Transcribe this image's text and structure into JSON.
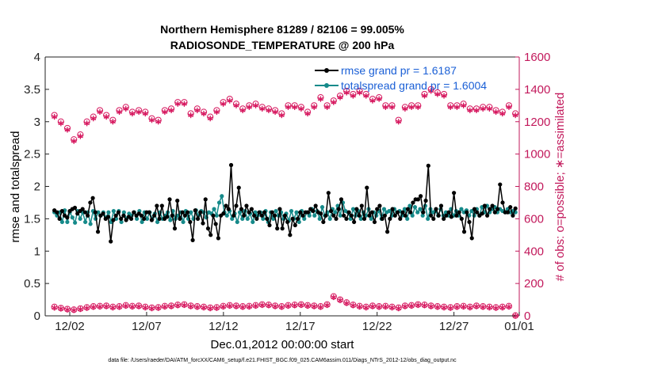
{
  "chart_data": {
    "type": "line",
    "title": "Northern Hemisphere 81289 / 82106 = 99.005%",
    "subtitle": "RADIOSONDE_TEMPERATURE @ 200 hPa",
    "xlabel": "Dec.01,2012 00:00:00 start",
    "ylabel_left": "rmse and totalspread",
    "ylabel_right": "# of obs: o=possible; ∗=assimilated",
    "footer": "data file: /Users/raeder/DAI/ATM_forcXX/CAM6_setup/f.e21.FHIST_BGC.f09_025.CAM6assim.011/Diags_NTrS_2012-12/obs_diag_output.nc",
    "x_range": [
      0.4,
      31.25
    ],
    "ylim_left": [
      0,
      4
    ],
    "ylim_right": [
      0,
      1600
    ],
    "yticks_left": [
      "0",
      "0.5",
      "1",
      "1.5",
      "2",
      "2.5",
      "3",
      "3.5",
      "4"
    ],
    "yticks_right": [
      "0",
      "200",
      "400",
      "600",
      "800",
      "1000",
      "1200",
      "1400",
      "1600"
    ],
    "xticks": [
      {
        "label": "12/02",
        "value": 2
      },
      {
        "label": "12/07",
        "value": 7
      },
      {
        "label": "12/12",
        "value": 12
      },
      {
        "label": "12/17",
        "value": 17
      },
      {
        "label": "12/22",
        "value": 22
      },
      {
        "label": "12/27",
        "value": 27
      },
      {
        "label": "01/01",
        "value": 32
      }
    ],
    "legend": [
      {
        "label": "rmse grand pr = 1.6187",
        "color": "#000000"
      },
      {
        "label": "totalspread grand pr = 1.6004",
        "color": "#168a8a"
      }
    ],
    "colors": {
      "rmse": "#000000",
      "spread": "#168a8a",
      "obs": "#d6185f",
      "axis": "#222222"
    },
    "series": [
      {
        "name": "rmse",
        "color": "#000000",
        "values": [
          1.63,
          1.6,
          1.5,
          1.62,
          1.55,
          1.52,
          1.62,
          1.65,
          1.67,
          1.58,
          1.62,
          1.65,
          1.6,
          1.55,
          1.75,
          1.82,
          1.6,
          1.3,
          1.55,
          1.58,
          1.5,
          1.53,
          1.15,
          1.48,
          1.55,
          1.6,
          1.5,
          1.55,
          1.48,
          1.53,
          1.5,
          1.6,
          1.55,
          1.58,
          1.55,
          1.5,
          1.6,
          1.6,
          1.48,
          1.55,
          1.7,
          1.5,
          1.7,
          1.5,
          1.53,
          1.8,
          1.55,
          1.35,
          1.78,
          1.5,
          1.6,
          1.55,
          1.6,
          1.45,
          1.17,
          1.63,
          1.5,
          1.6,
          1.43,
          1.8,
          1.35,
          1.25,
          1.55,
          1.42,
          1.2,
          1.55,
          1.58,
          1.7,
          1.65,
          2.33,
          1.55,
          1.7,
          1.98,
          1.65,
          1.55,
          1.7,
          1.6,
          1.65,
          1.55,
          1.5,
          1.6,
          1.55,
          1.6,
          1.5,
          1.4,
          1.6,
          1.55,
          1.35,
          1.65,
          1.35,
          1.55,
          1.45,
          1.25,
          1.5,
          1.4,
          1.5,
          1.6,
          1.55,
          1.6,
          1.6,
          1.65,
          1.62,
          1.7,
          1.6,
          1.58,
          1.45,
          1.55,
          1.9,
          1.62,
          1.55,
          1.5,
          1.65,
          1.8,
          1.55,
          1.5,
          1.6,
          1.55,
          1.45,
          1.65,
          1.55,
          1.7,
          1.5,
          1.98,
          1.55,
          1.6,
          1.45,
          1.65,
          1.7,
          1.5,
          1.55,
          1.3,
          1.5,
          1.65,
          1.55,
          1.6,
          1.5,
          1.6,
          1.55,
          1.65,
          1.6,
          1.75,
          1.8,
          1.8,
          1.85,
          1.6,
          1.78,
          2.32,
          1.55,
          1.5,
          1.65,
          1.55,
          1.7,
          1.5,
          1.55,
          1.6,
          1.53,
          1.9,
          1.55,
          1.6,
          1.5,
          1.3,
          1.6,
          1.45,
          1.2,
          1.65,
          1.6,
          1.55,
          1.58,
          1.7,
          1.55,
          1.65,
          1.7,
          1.6,
          1.65,
          2.03,
          1.75,
          1.6,
          1.6,
          1.68,
          1.55,
          1.66
        ]
      },
      {
        "name": "totalspread",
        "color": "#168a8a",
        "values": [
          1.6,
          1.55,
          1.6,
          1.45,
          1.63,
          1.45,
          1.6,
          1.52,
          1.44,
          1.62,
          1.5,
          1.6,
          1.45,
          1.6,
          1.42,
          1.62,
          1.5,
          1.6,
          1.55,
          1.6,
          1.52,
          1.6,
          1.45,
          1.62,
          1.5,
          1.62,
          1.45,
          1.6,
          1.5,
          1.58,
          1.55,
          1.6,
          1.5,
          1.62,
          1.45,
          1.6,
          1.5,
          1.6,
          1.5,
          1.58,
          1.45,
          1.6,
          1.5,
          1.55,
          1.6,
          1.48,
          1.62,
          1.5,
          1.55,
          1.6,
          1.45,
          1.62,
          1.5,
          1.6,
          1.5,
          1.63,
          1.55,
          1.62,
          1.6,
          1.52,
          1.6,
          1.58,
          1.65,
          1.55,
          1.75,
          1.85,
          1.6,
          1.55,
          1.62,
          1.5,
          1.58,
          1.45,
          1.6,
          1.5,
          1.62,
          1.5,
          1.58,
          1.45,
          1.6,
          1.55,
          1.6,
          1.5,
          1.62,
          1.45,
          1.6,
          1.5,
          1.62,
          1.55,
          1.6,
          1.5,
          1.58,
          1.47,
          1.62,
          1.5,
          1.6,
          1.45,
          1.62,
          1.5,
          1.6,
          1.55,
          1.65,
          1.55,
          1.62,
          1.5,
          1.68,
          1.55,
          1.6,
          1.5,
          1.65,
          1.6,
          1.7,
          1.55,
          1.75,
          1.62,
          1.6,
          1.5,
          1.65,
          1.55,
          1.62,
          1.5,
          1.6,
          1.55,
          1.65,
          1.5,
          1.6,
          1.55,
          1.62,
          1.5,
          1.65,
          1.6,
          1.62,
          1.55,
          1.65,
          1.6,
          1.62,
          1.55,
          1.65,
          1.5,
          1.7,
          1.55,
          1.68,
          1.6,
          1.65,
          1.55,
          1.7,
          1.5,
          1.65,
          1.6,
          1.62,
          1.55,
          1.65,
          1.55,
          1.6,
          1.55,
          1.65,
          1.55,
          1.62,
          1.55,
          1.65,
          1.6,
          1.63,
          1.55,
          1.62,
          1.55,
          1.65,
          1.55,
          1.68,
          1.6,
          1.7,
          1.6,
          1.65,
          1.68,
          1.6,
          1.65,
          1.62,
          1.6,
          1.65,
          1.6,
          1.62,
          1.6
        ]
      },
      {
        "name": "obs_possible",
        "color": "#d6185f",
        "marker": "o",
        "values": [
          1240,
          1200,
          1160,
          1090,
          1120,
          1200,
          1230,
          1270,
          1240,
          1210,
          1270,
          1290,
          1260,
          1270,
          1260,
          1220,
          1210,
          1270,
          1280,
          1320,
          1320,
          1250,
          1280,
          1260,
          1230,
          1270,
          1320,
          1340,
          1310,
          1280,
          1300,
          1310,
          1290,
          1280,
          1270,
          1250,
          1300,
          1300,
          1290,
          1260,
          1300,
          1350,
          1300,
          1330,
          1360,
          1390,
          1370,
          1390,
          1370,
          1340,
          1350,
          1300,
          1300,
          1210,
          1290,
          1300,
          1300,
          1370,
          1400,
          1380,
          1370,
          1300,
          1300,
          1310,
          1280,
          1280,
          1290,
          1290,
          1270,
          1260,
          1300,
          1250
        ]
      },
      {
        "name": "obs_assimilated",
        "color": "#d6185f",
        "marker": "*",
        "values": [
          1230,
          1190,
          1150,
          1080,
          1110,
          1190,
          1220,
          1260,
          1230,
          1200,
          1260,
          1280,
          1250,
          1260,
          1250,
          1210,
          1200,
          1260,
          1270,
          1310,
          1310,
          1240,
          1270,
          1250,
          1220,
          1260,
          1310,
          1330,
          1300,
          1270,
          1290,
          1300,
          1280,
          1270,
          1260,
          1240,
          1290,
          1290,
          1280,
          1250,
          1290,
          1340,
          1290,
          1320,
          1350,
          1380,
          1360,
          1380,
          1360,
          1330,
          1340,
          1290,
          1290,
          1200,
          1280,
          1290,
          1290,
          1360,
          1390,
          1370,
          1360,
          1290,
          1290,
          1300,
          1270,
          1270,
          1280,
          1280,
          1260,
          1250,
          1290,
          1240
        ]
      },
      {
        "name": "obs_possible_low",
        "color": "#d6185f",
        "marker": "o",
        "values": [
          55,
          48,
          42,
          38,
          45,
          52,
          58,
          60,
          62,
          55,
          58,
          65,
          60,
          62,
          55,
          50,
          52,
          60,
          62,
          68,
          70,
          62,
          58,
          55,
          50,
          52,
          60,
          65,
          62,
          58,
          60,
          65,
          70,
          68,
          62,
          58,
          65,
          68,
          70,
          65,
          62,
          58,
          70,
          120,
          100,
          82,
          68,
          60,
          55,
          62,
          58,
          60,
          55,
          50,
          62,
          65,
          70,
          68,
          62,
          58,
          55,
          52,
          58,
          60,
          55,
          62,
          58,
          55,
          52,
          55,
          60,
          2
        ]
      },
      {
        "name": "obs_assimilated_low",
        "color": "#d6185f",
        "marker": "*",
        "values": [
          50,
          44,
          38,
          35,
          41,
          48,
          54,
          56,
          58,
          51,
          54,
          61,
          56,
          58,
          51,
          46,
          48,
          56,
          58,
          64,
          66,
          58,
          54,
          51,
          46,
          48,
          56,
          61,
          58,
          54,
          56,
          61,
          66,
          64,
          58,
          54,
          61,
          64,
          66,
          61,
          58,
          54,
          66,
          115,
          96,
          78,
          64,
          56,
          51,
          58,
          54,
          56,
          51,
          46,
          58,
          61,
          66,
          64,
          58,
          54,
          51,
          48,
          54,
          56,
          51,
          58,
          54,
          51,
          48,
          51,
          56,
          0
        ]
      }
    ]
  }
}
